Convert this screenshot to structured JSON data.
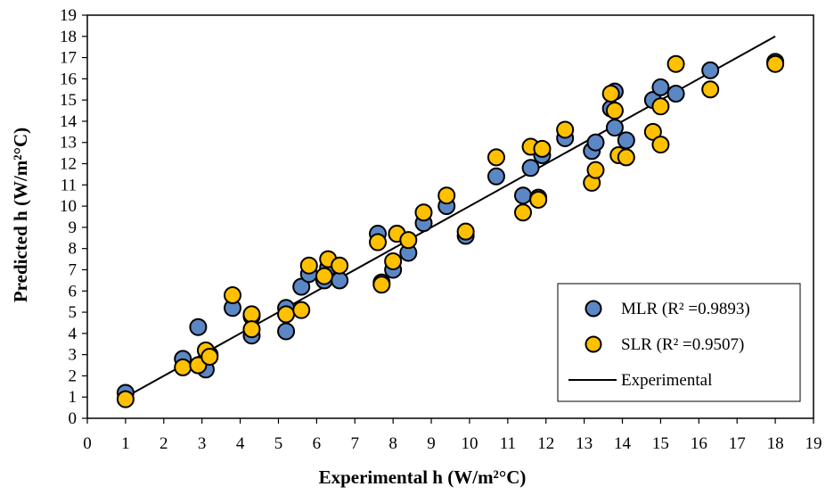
{
  "chart_data": {
    "type": "scatter",
    "title": "",
    "xlabel": "Experimental h (W/m²°C)",
    "ylabel": "Predicted h (W/m²°C)",
    "xlim": [
      0,
      19
    ],
    "ylim": [
      0,
      19
    ],
    "xticks": [
      "0",
      "1",
      "2",
      "3",
      "4",
      "5",
      "6",
      "7",
      "8",
      "9",
      "10",
      "11",
      "12",
      "13",
      "14",
      "15",
      "16",
      "17",
      "18",
      "19"
    ],
    "yticks": [
      "0",
      "1",
      "2",
      "3",
      "4",
      "5",
      "6",
      "7",
      "8",
      "9",
      "10",
      "11",
      "12",
      "13",
      "14",
      "15",
      "16",
      "17",
      "18",
      "19"
    ],
    "grid": false,
    "legend_position": "bottom-right",
    "series": [
      {
        "name": "MLR (R² =0.9893)",
        "marker": "circle",
        "color": "#5b87c5",
        "points": [
          [
            1.0,
            1.2
          ],
          [
            2.5,
            2.8
          ],
          [
            2.9,
            4.3
          ],
          [
            3.1,
            2.3
          ],
          [
            3.2,
            3.0
          ],
          [
            3.8,
            5.2
          ],
          [
            4.3,
            3.9
          ],
          [
            4.3,
            4.8
          ],
          [
            5.2,
            5.2
          ],
          [
            5.2,
            4.1
          ],
          [
            5.6,
            6.2
          ],
          [
            5.8,
            6.8
          ],
          [
            6.2,
            6.5
          ],
          [
            6.3,
            7.1
          ],
          [
            6.6,
            6.5
          ],
          [
            7.6,
            8.7
          ],
          [
            7.7,
            6.4
          ],
          [
            8.0,
            7.0
          ],
          [
            8.1,
            8.7
          ],
          [
            8.4,
            7.8
          ],
          [
            8.8,
            9.2
          ],
          [
            9.4,
            10.0
          ],
          [
            9.9,
            8.6
          ],
          [
            10.7,
            11.4
          ],
          [
            11.4,
            10.5
          ],
          [
            11.8,
            10.4
          ],
          [
            11.6,
            11.8
          ],
          [
            11.9,
            12.4
          ],
          [
            12.5,
            13.2
          ],
          [
            13.2,
            12.6
          ],
          [
            13.3,
            13.0
          ],
          [
            13.7,
            14.6
          ],
          [
            13.8,
            15.4
          ],
          [
            13.8,
            13.7
          ],
          [
            14.1,
            13.1
          ],
          [
            14.8,
            15.0
          ],
          [
            15.0,
            15.6
          ],
          [
            15.4,
            15.3
          ],
          [
            16.3,
            16.4
          ],
          [
            18.0,
            16.8
          ]
        ]
      },
      {
        "name": "SLR (R² =0.9507)",
        "marker": "circle",
        "color": "#ffc000",
        "points": [
          [
            1.0,
            0.9
          ],
          [
            2.5,
            2.4
          ],
          [
            2.9,
            2.5
          ],
          [
            3.1,
            3.2
          ],
          [
            3.2,
            2.9
          ],
          [
            3.8,
            5.8
          ],
          [
            4.3,
            4.9
          ],
          [
            4.3,
            4.2
          ],
          [
            5.2,
            4.9
          ],
          [
            5.6,
            5.1
          ],
          [
            5.8,
            7.2
          ],
          [
            6.2,
            6.7
          ],
          [
            6.3,
            7.5
          ],
          [
            6.6,
            7.2
          ],
          [
            7.6,
            8.3
          ],
          [
            7.7,
            6.3
          ],
          [
            8.0,
            7.4
          ],
          [
            8.1,
            8.7
          ],
          [
            8.4,
            8.4
          ],
          [
            8.8,
            9.7
          ],
          [
            9.4,
            10.5
          ],
          [
            9.9,
            8.8
          ],
          [
            10.7,
            12.3
          ],
          [
            11.4,
            9.7
          ],
          [
            11.6,
            12.8
          ],
          [
            11.8,
            10.3
          ],
          [
            11.9,
            12.7
          ],
          [
            12.5,
            13.6
          ],
          [
            13.2,
            11.1
          ],
          [
            13.3,
            11.7
          ],
          [
            13.7,
            15.3
          ],
          [
            13.8,
            14.5
          ],
          [
            13.9,
            12.4
          ],
          [
            14.1,
            12.3
          ],
          [
            14.8,
            13.5
          ],
          [
            15.0,
            14.7
          ],
          [
            15.0,
            12.9
          ],
          [
            15.4,
            16.7
          ],
          [
            16.3,
            15.5
          ],
          [
            18.0,
            16.7
          ]
        ]
      },
      {
        "name": "Experimental",
        "marker": "line",
        "color": "#000000",
        "points": [
          [
            1.0,
            1.0
          ],
          [
            18.0,
            18.0
          ]
        ]
      }
    ]
  }
}
